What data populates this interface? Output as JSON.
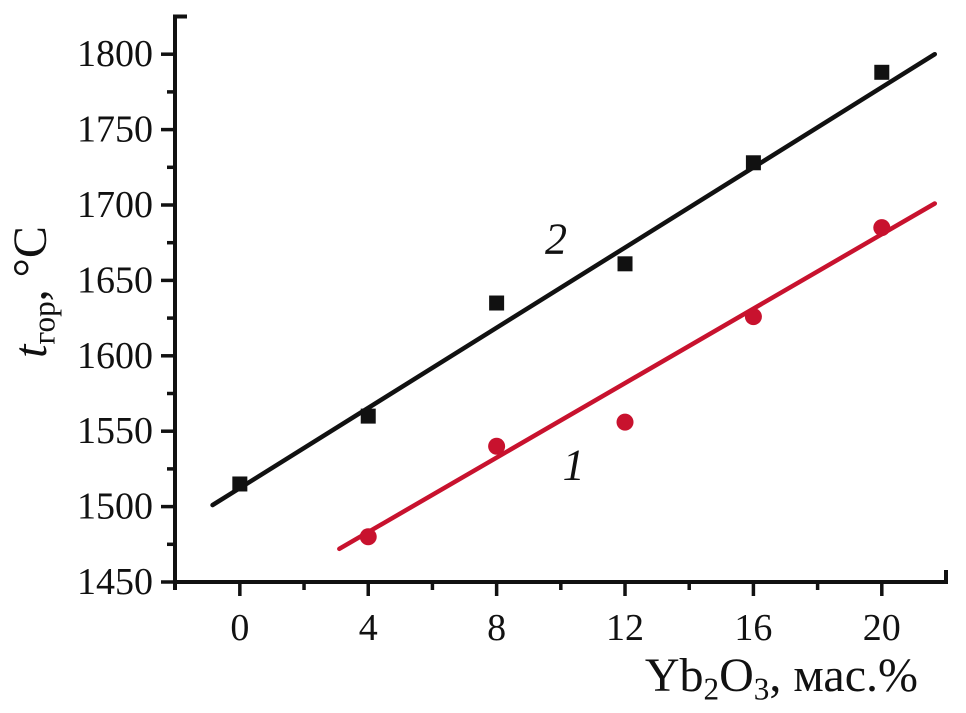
{
  "figure": {
    "background": "#ffffff",
    "axis_color": "#111111"
  },
  "chart_data": {
    "type": "scatter",
    "title": "",
    "xlabel": "Yb2O3, мас.%",
    "xlabel_parts": [
      {
        "t": "Yb"
      },
      {
        "t": "2",
        "sub": true
      },
      {
        "t": "O"
      },
      {
        "t": "3",
        "sub": true
      },
      {
        "t": ", мас.%"
      }
    ],
    "ylabel": "tгор, °C",
    "ylabel_parts": [
      {
        "t": "t",
        "italic": true
      },
      {
        "t": "гор",
        "sub": true
      },
      {
        "t": ", °C"
      }
    ],
    "xlim": [
      -2.02,
      22
    ],
    "ylim": [
      1450,
      1825
    ],
    "x_major_ticks": [
      0,
      4,
      8,
      12,
      16,
      20
    ],
    "x_minor_ticks": [
      2,
      6,
      10,
      14,
      18
    ],
    "y_major_ticks": [
      1450,
      1500,
      1550,
      1600,
      1650,
      1700,
      1750,
      1800
    ],
    "y_minor_ticks": [
      1475,
      1525,
      1575,
      1625,
      1675,
      1725,
      1775
    ],
    "grid": false,
    "legend_position": "none",
    "series": [
      {
        "name": "2",
        "marker": "square",
        "color": "#111111",
        "x": [
          0,
          4,
          8,
          12,
          16,
          20
        ],
        "y": [
          1515,
          1560,
          1635,
          1661,
          1728,
          1788
        ],
        "fit_line": {
          "x1": -0.85,
          "y1": 1501,
          "x2": 21.65,
          "y2": 1800
        },
        "inline_label": {
          "text": "2",
          "x": 9.85,
          "y": 1668
        }
      },
      {
        "name": "1",
        "marker": "circle",
        "color": "#c8122e",
        "x": [
          4,
          8,
          12,
          16,
          20
        ],
        "y": [
          1480,
          1540,
          1556,
          1626,
          1685
        ],
        "fit_line": {
          "x1": 3.1,
          "y1": 1472,
          "x2": 21.65,
          "y2": 1701
        },
        "inline_label": {
          "text": "1",
          "x": 10.4,
          "y": 1518
        }
      }
    ]
  }
}
